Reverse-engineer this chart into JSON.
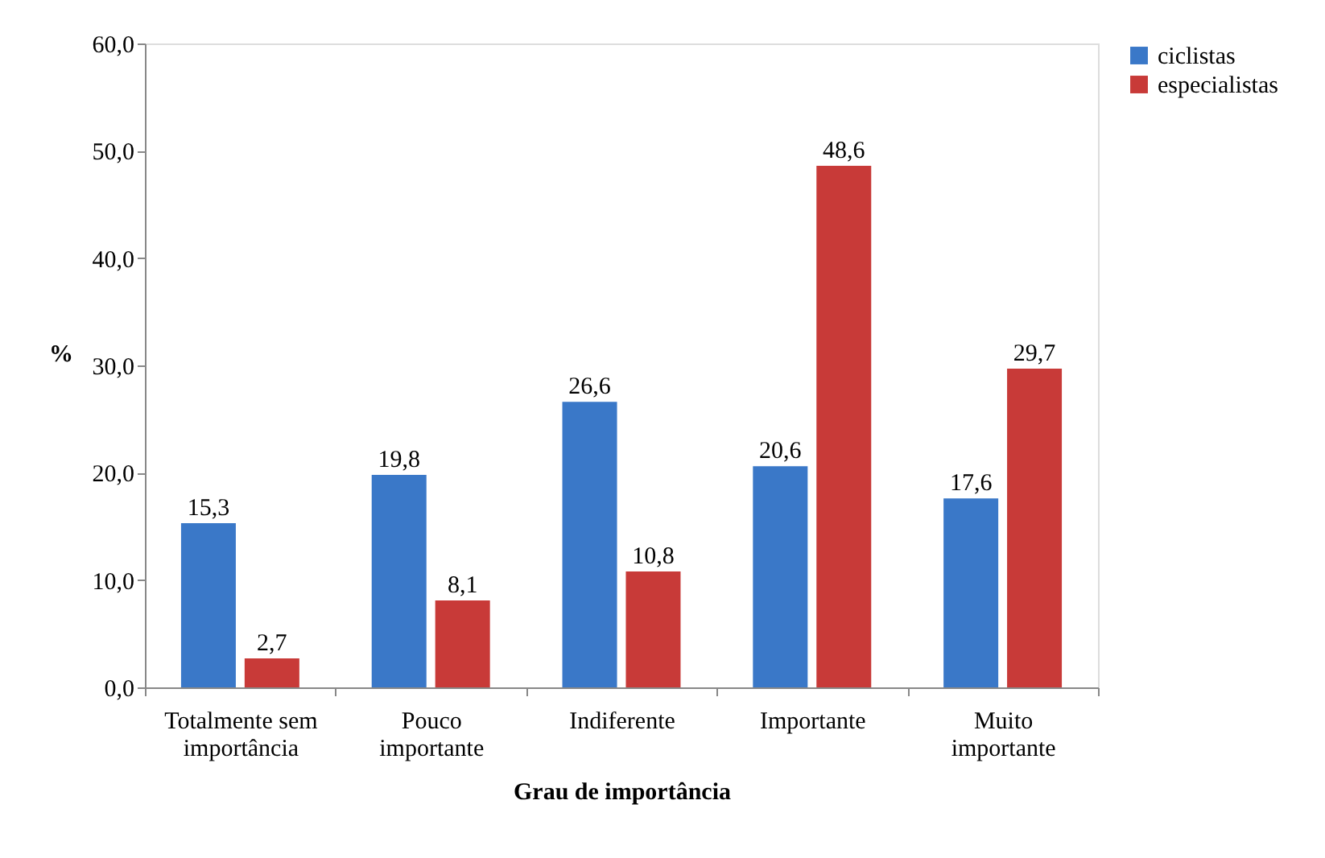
{
  "chart_data": {
    "type": "bar",
    "xlabel": "Grau de importância",
    "ylabel": "%",
    "categories": [
      "Totalmente sem importância",
      "Pouco importante",
      "Indiferente",
      "Importante",
      "Muito importante"
    ],
    "series": [
      {
        "name": "ciclistas",
        "color": "#3a78c8",
        "values": [
          15.3,
          19.8,
          26.6,
          20.6,
          17.6
        ],
        "value_labels": [
          "15,3",
          "19,8",
          "26,6",
          "20,6",
          "17,6"
        ]
      },
      {
        "name": "especialistas",
        "color": "#c83a38",
        "values": [
          2.7,
          8.1,
          10.8,
          48.6,
          29.7
        ],
        "value_labels": [
          "2,7",
          "8,1",
          "10,8",
          "48,6",
          "29,7"
        ]
      }
    ],
    "ylim": [
      0,
      60
    ],
    "yticks": [
      {
        "value": 0,
        "label": "0,0"
      },
      {
        "value": 10,
        "label": "10,0"
      },
      {
        "value": 20,
        "label": "20,0"
      },
      {
        "value": 30,
        "label": "30,0"
      },
      {
        "value": 40,
        "label": "40,0"
      },
      {
        "value": 50,
        "label": "50,0"
      },
      {
        "value": 60,
        "label": "60,0"
      }
    ],
    "grid": false,
    "legend": "right"
  }
}
